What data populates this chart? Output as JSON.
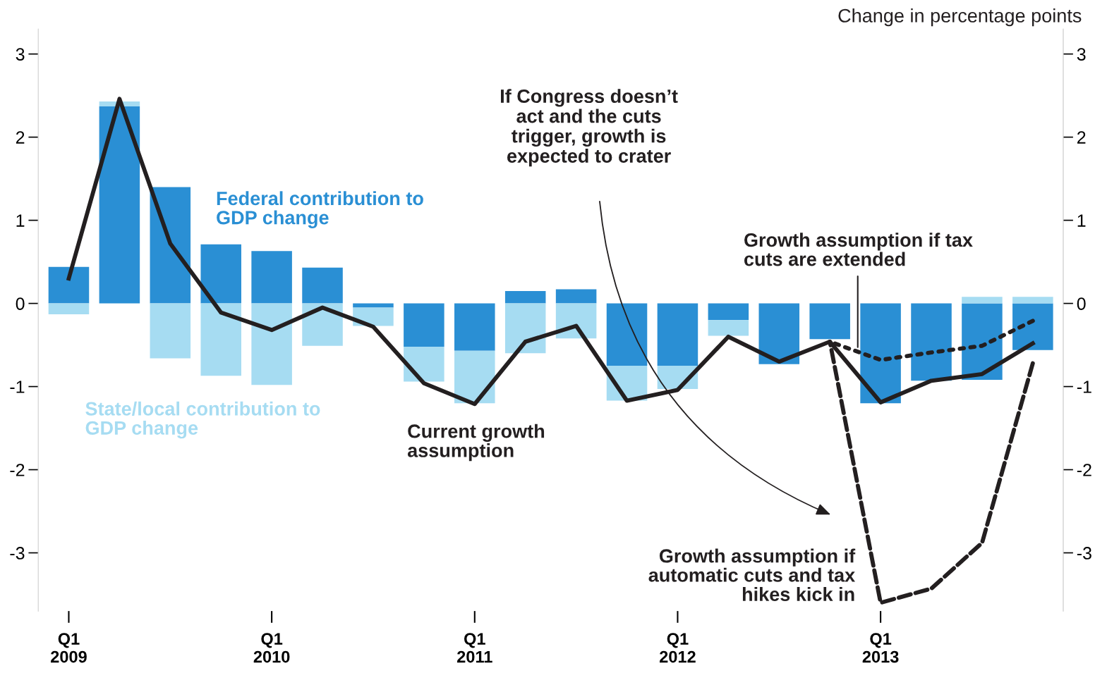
{
  "chart_data": {
    "type": "bar",
    "stacked": true,
    "categories": [
      "Q1\n2009",
      null,
      null,
      null,
      "Q1\n2010",
      null,
      null,
      null,
      "Q1\n2011",
      null,
      null,
      null,
      "Q1\n2012",
      null,
      null,
      null,
      "Q1\n2013",
      null,
      null,
      null
    ],
    "series": [
      {
        "name": "Federal contribution to GDP change",
        "color": "#2a8fd4",
        "values": [
          0.44,
          2.37,
          1.4,
          0.71,
          0.63,
          0.43,
          -0.05,
          -0.52,
          -0.57,
          0.15,
          0.17,
          -0.75,
          -0.75,
          -0.2,
          -0.73,
          -0.43,
          -1.2,
          -0.93,
          -0.92,
          -0.56
        ]
      },
      {
        "name": "State/local contribution to GDP change",
        "color": "#a6dcf2",
        "values": [
          -0.13,
          0.06,
          -0.66,
          -0.87,
          -0.98,
          -0.51,
          -0.22,
          -0.42,
          -0.63,
          -0.6,
          -0.42,
          -0.42,
          -0.28,
          -0.19,
          null,
          null,
          null,
          null,
          0.08,
          0.08
        ]
      },
      {
        "type": "line",
        "name": "Current growth assumption",
        "color": "#231f20",
        "line_style": "solid",
        "values": [
          0.3,
          2.46,
          0.72,
          -0.11,
          -0.32,
          -0.05,
          -0.28,
          -0.96,
          -1.21,
          -0.46,
          -0.27,
          -1.17,
          -1.04,
          -0.4,
          -0.7,
          -0.46,
          -1.19,
          -0.93,
          -0.85,
          -0.48
        ]
      },
      {
        "type": "line",
        "name": "Growth assumption if tax cuts are extended",
        "color": "#231f20",
        "line_style": "dotted",
        "values": [
          null,
          null,
          null,
          null,
          null,
          null,
          null,
          null,
          null,
          null,
          null,
          null,
          null,
          null,
          null,
          -0.46,
          -0.68,
          -0.59,
          -0.51,
          -0.21
        ]
      },
      {
        "type": "line",
        "name": "Growth assumption if automatic cuts and tax hikes kick in",
        "color": "#231f20",
        "line_style": "dashed",
        "values": [
          null,
          null,
          null,
          null,
          null,
          null,
          null,
          null,
          null,
          null,
          null,
          null,
          null,
          null,
          null,
          -0.46,
          -3.6,
          -3.43,
          -2.88,
          -0.72
        ]
      }
    ],
    "ylim": [
      -3.7,
      3.3
    ],
    "yticks": [
      -3,
      -2,
      -1,
      0,
      1,
      2,
      3
    ],
    "y2lim": [
      -3.7,
      3.3
    ],
    "y2ticks": [
      -3,
      -2,
      -1,
      0,
      1,
      2,
      3
    ],
    "annotations": [
      "Change in percentage points",
      "If Congress doesn’t\nact and the cuts\ntrigger, growth is\nexpected to crater"
    ],
    "grid": false,
    "legend": false
  }
}
